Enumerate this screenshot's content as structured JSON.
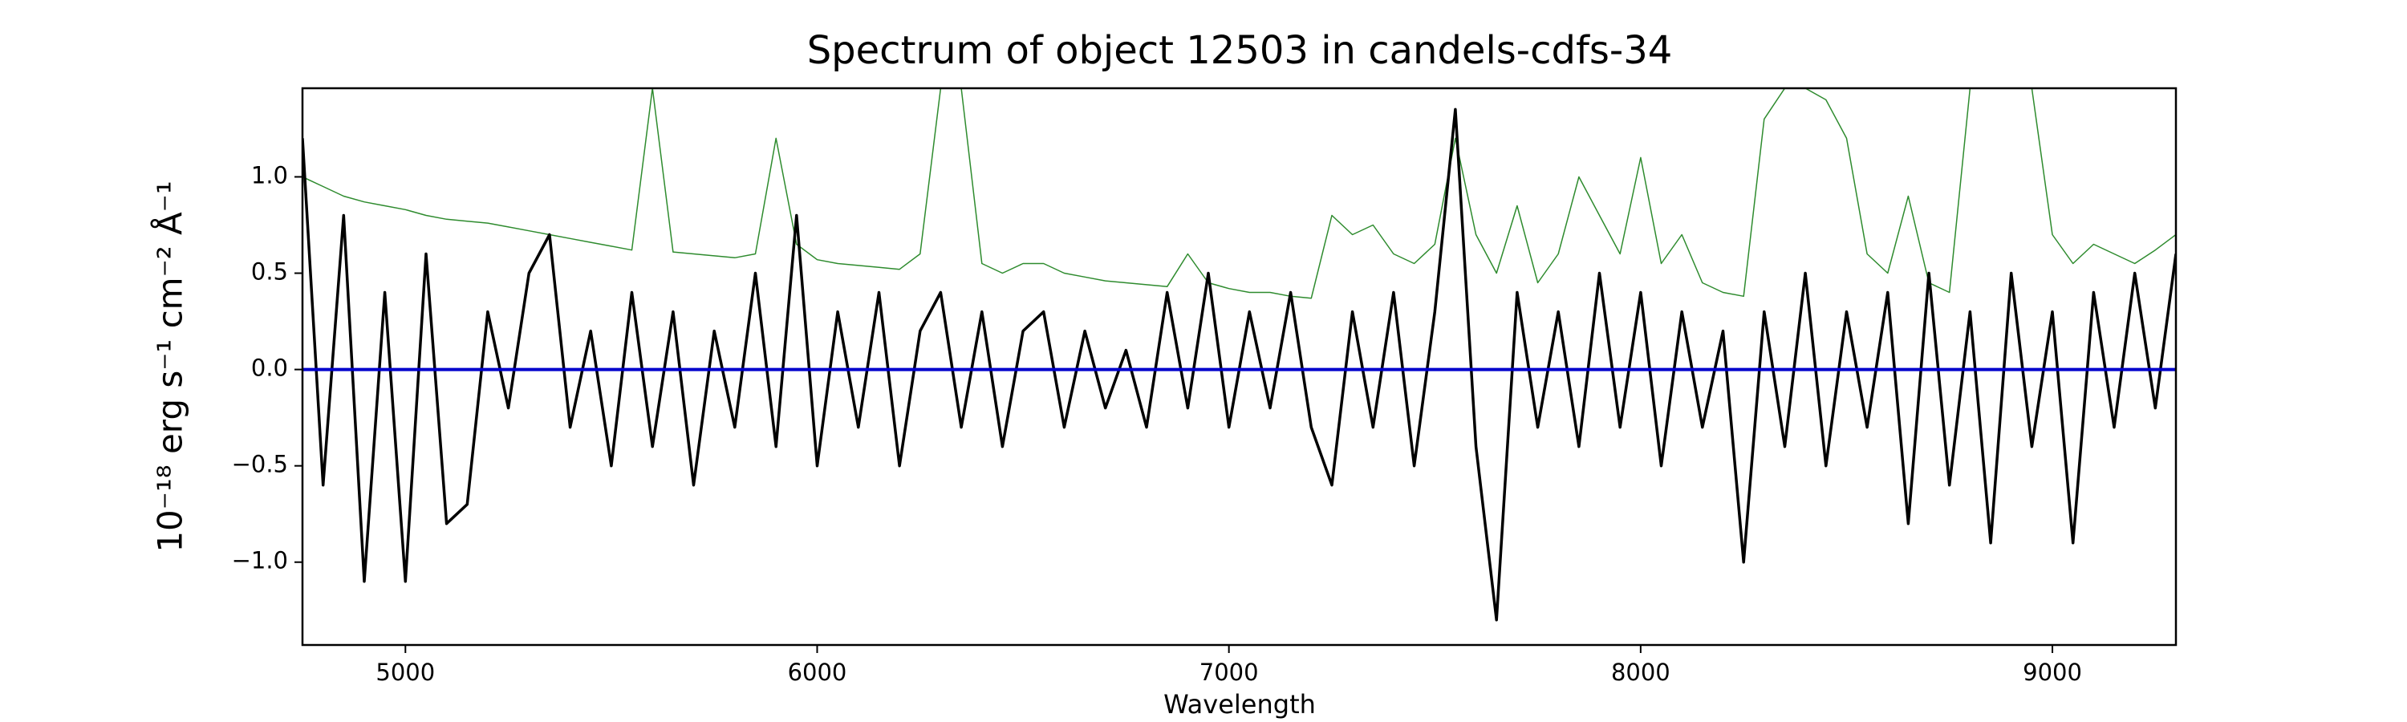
{
  "chart_data": {
    "type": "line",
    "title": "Spectrum of object 12503 in candels-cdfs-34",
    "xlabel": "Wavelength",
    "ylabel": "10⁻¹⁸ erg s⁻¹ cm⁻² Å⁻¹",
    "xlim": [
      4750,
      9300
    ],
    "ylim": [
      -1.43,
      1.46
    ],
    "xticks": [
      5000,
      6000,
      7000,
      8000,
      9000
    ],
    "yticks": [
      {
        "value": -1.0,
        "label": "−1.0"
      },
      {
        "value": -0.5,
        "label": "−0.5"
      },
      {
        "value": 0.0,
        "label": "0.0"
      },
      0.5,
      {
        "value": 1.0,
        "label": "1.0"
      }
    ],
    "grid": false,
    "x": [
      4750,
      4800,
      4850,
      4900,
      4950,
      5000,
      5050,
      5100,
      5150,
      5200,
      5250,
      5300,
      5350,
      5400,
      5450,
      5500,
      5550,
      5600,
      5650,
      5700,
      5750,
      5800,
      5850,
      5900,
      5950,
      6000,
      6050,
      6100,
      6150,
      6200,
      6250,
      6300,
      6350,
      6400,
      6450,
      6500,
      6550,
      6600,
      6650,
      6700,
      6750,
      6800,
      6850,
      6900,
      6950,
      7000,
      7050,
      7100,
      7150,
      7200,
      7250,
      7300,
      7350,
      7400,
      7450,
      7500,
      7550,
      7600,
      7650,
      7700,
      7750,
      7800,
      7850,
      7900,
      7950,
      8000,
      8050,
      8100,
      8150,
      8200,
      8250,
      8300,
      8350,
      8400,
      8450,
      8500,
      8550,
      8600,
      8650,
      8700,
      8750,
      8800,
      8850,
      8900,
      8950,
      9000,
      9050,
      9100,
      9150,
      9200,
      9250,
      9300
    ],
    "series": [
      {
        "color": "#2e8b2e",
        "width": 1.5,
        "values": [
          1.0,
          0.95,
          0.9,
          0.87,
          0.85,
          0.83,
          0.8,
          0.78,
          0.77,
          0.76,
          0.74,
          0.72,
          0.7,
          0.68,
          0.66,
          0.64,
          0.62,
          1.46,
          0.61,
          0.6,
          0.59,
          0.58,
          0.6,
          1.2,
          0.65,
          0.57,
          0.55,
          0.54,
          0.53,
          0.52,
          0.6,
          1.46,
          1.46,
          0.55,
          0.5,
          0.55,
          0.55,
          0.5,
          0.48,
          0.46,
          0.45,
          0.44,
          0.43,
          0.6,
          0.45,
          0.42,
          0.4,
          0.4,
          0.38,
          0.37,
          0.8,
          0.7,
          0.75,
          0.6,
          0.55,
          0.65,
          1.2,
          0.7,
          0.5,
          0.85,
          0.45,
          0.6,
          1.0,
          0.8,
          0.6,
          1.1,
          0.55,
          0.7,
          0.45,
          0.4,
          0.38,
          1.3,
          1.46,
          1.46,
          1.4,
          1.2,
          0.6,
          0.5,
          0.9,
          0.45,
          0.4,
          1.46,
          1.46,
          1.46,
          1.46,
          0.7,
          0.55,
          0.65,
          0.6,
          0.55,
          0.62,
          0.7
        ]
      },
      {
        "color": "#000000",
        "width": 3.5,
        "values": [
          1.2,
          -0.6,
          0.8,
          -1.1,
          0.4,
          -1.1,
          0.6,
          -0.8,
          -0.7,
          0.3,
          -0.2,
          0.5,
          0.7,
          -0.3,
          0.2,
          -0.5,
          0.4,
          -0.4,
          0.3,
          -0.6,
          0.2,
          -0.3,
          0.5,
          -0.4,
          0.8,
          -0.5,
          0.3,
          -0.3,
          0.4,
          -0.5,
          0.2,
          0.4,
          -0.3,
          0.3,
          -0.4,
          0.2,
          0.3,
          -0.3,
          0.2,
          -0.2,
          0.1,
          -0.3,
          0.4,
          -0.2,
          0.5,
          -0.3,
          0.3,
          -0.2,
          0.4,
          -0.3,
          -0.6,
          0.3,
          -0.3,
          0.4,
          -0.5,
          0.3,
          1.35,
          -0.4,
          -1.3,
          0.4,
          -0.3,
          0.3,
          -0.4,
          0.5,
          -0.3,
          0.4,
          -0.5,
          0.3,
          -0.3,
          0.2,
          -1.0,
          0.3,
          -0.4,
          0.5,
          -0.5,
          0.3,
          -0.3,
          0.4,
          -0.8,
          0.5,
          -0.6,
          0.3,
          -0.9,
          0.5,
          -0.4,
          0.3,
          -0.9,
          0.4,
          -0.3,
          0.5,
          -0.2,
          0.6
        ]
      },
      {
        "color": "#0000cc",
        "width": 4,
        "x": [
          4750,
          9300
        ],
        "values": [
          0.0,
          0.0
        ]
      }
    ]
  }
}
